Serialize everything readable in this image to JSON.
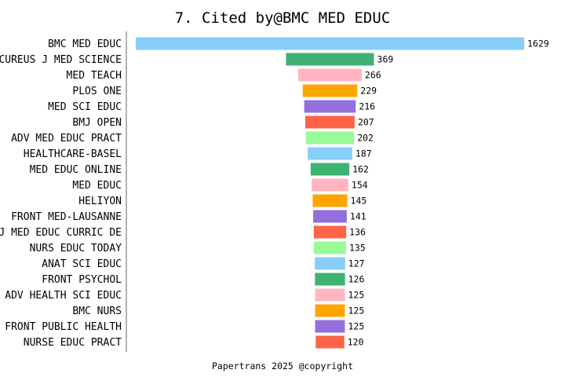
{
  "chart_data": {
    "type": "bar",
    "orientation": "horizontal",
    "title": "7. Cited by@BMC MED EDUC",
    "xlabel": "",
    "ylabel": "",
    "grid": false,
    "categories": [
      "BMC MED EDUC",
      "CUREUS J MED SCIENCE",
      "MED TEACH",
      "PLOS ONE",
      "MED SCI EDUC",
      "BMJ OPEN",
      "ADV MED EDUC PRACT",
      "HEALTHCARE-BASEL",
      "MED EDUC ONLINE",
      "MED EDUC",
      "HELIYON",
      "FRONT MED-LAUSANNE",
      "J MED EDUC CURRIC DE",
      "NURS EDUC TODAY",
      "ANAT SCI EDUC",
      "FRONT PSYCHOL",
      "ADV HEALTH SCI EDUC",
      "BMC NURS",
      "FRONT PUBLIC HEALTH",
      "NURSE EDUC PRACT"
    ],
    "values": [
      1629,
      369,
      266,
      229,
      216,
      207,
      202,
      187,
      162,
      154,
      145,
      141,
      136,
      135,
      127,
      126,
      125,
      125,
      125,
      120
    ],
    "value_labels": [
      "1629",
      "369",
      "266",
      "229",
      "216",
      "207",
      "202",
      "187",
      "162",
      "154",
      "145",
      "141",
      "136",
      "135",
      "127",
      "126",
      "125",
      "125",
      "125",
      "120"
    ],
    "colors": [
      "#87CEFA",
      "#3CB371",
      "#FFB6C1",
      "#FFA500",
      "#9370DB",
      "#FF6347",
      "#98FB98"
    ],
    "bar_alignment": "center"
  },
  "footer": {
    "text": "Papertrans 2025 @copyright"
  }
}
